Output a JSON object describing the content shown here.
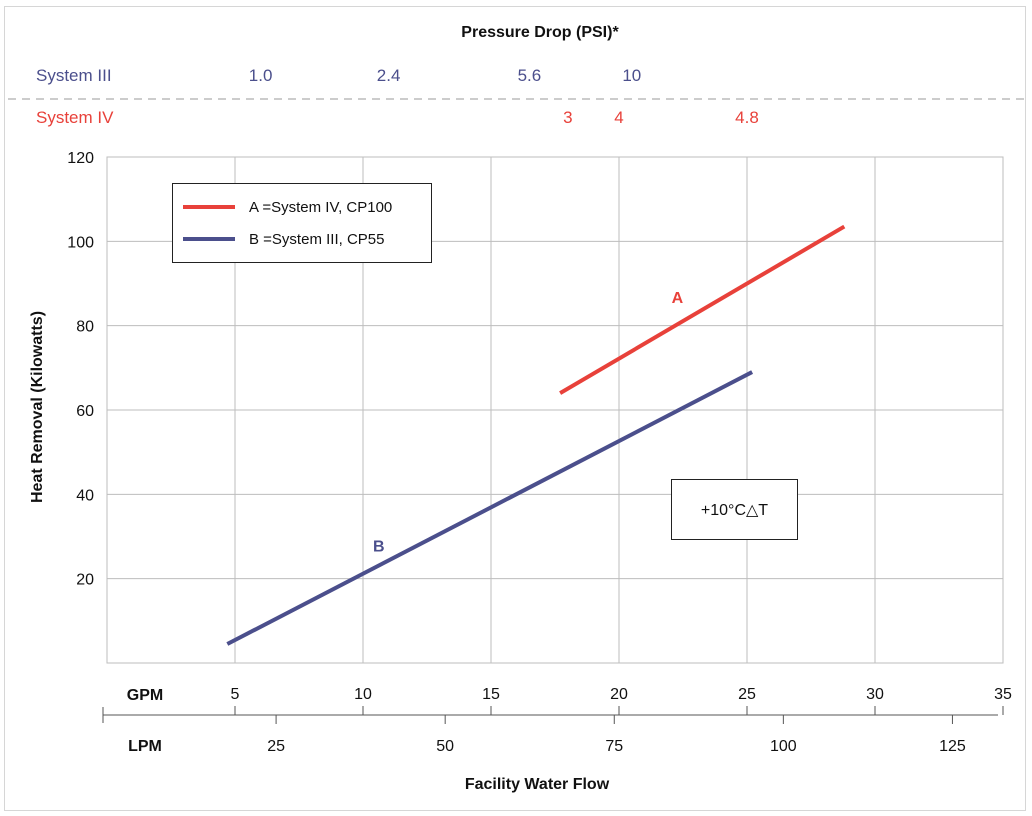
{
  "colors": {
    "system_iii": "#4b4f8c",
    "system_iv": "#e8413a",
    "grid": "#bdbdbd",
    "axis": "#555555",
    "text": "#111111"
  },
  "chart_data": {
    "type": "line",
    "title": "Pressure Drop (PSI)*",
    "xlabel": "Facility Water Flow",
    "ylabel": "Heat Removal (Kilowatts)",
    "xlim": [
      0,
      35
    ],
    "ylim": [
      0,
      120
    ],
    "x_unit_primary": "GPM",
    "x_unit_secondary": "LPM",
    "x_ticks": [
      5,
      10,
      15,
      20,
      25,
      30,
      35
    ],
    "y_ticks": [
      20,
      40,
      60,
      80,
      100,
      120
    ],
    "lpm_ticks": [
      25,
      50,
      75,
      100,
      125
    ],
    "grid": true,
    "legend_position": "top-left",
    "legend": [
      {
        "label": "A =System IV, CP100",
        "color": "#e8413a"
      },
      {
        "label": "B =System III, CP55",
        "color": "#4b4f8c"
      }
    ],
    "annotation": "+10°C△T",
    "series": [
      {
        "name": "A",
        "color": "#e8413a",
        "x": [
          17.7,
          28.8
        ],
        "y": [
          64,
          103.5
        ]
      },
      {
        "name": "B",
        "color": "#4b4f8c",
        "x": [
          4.7,
          25.2
        ],
        "y": [
          4.5,
          69
        ]
      }
    ],
    "pressure_scales": [
      {
        "system": "System III",
        "color": "#4b4f8c",
        "marks": [
          {
            "label": "1.0",
            "gpm": 6
          },
          {
            "label": "2.4",
            "gpm": 11
          },
          {
            "label": "5.6",
            "gpm": 16.5
          },
          {
            "label": "10",
            "gpm": 20.5
          }
        ]
      },
      {
        "system": "System IV",
        "color": "#e8413a",
        "marks": [
          {
            "label": "3",
            "gpm": 18
          },
          {
            "label": "4",
            "gpm": 20
          },
          {
            "label": "4.8",
            "gpm": 25
          }
        ]
      }
    ]
  }
}
